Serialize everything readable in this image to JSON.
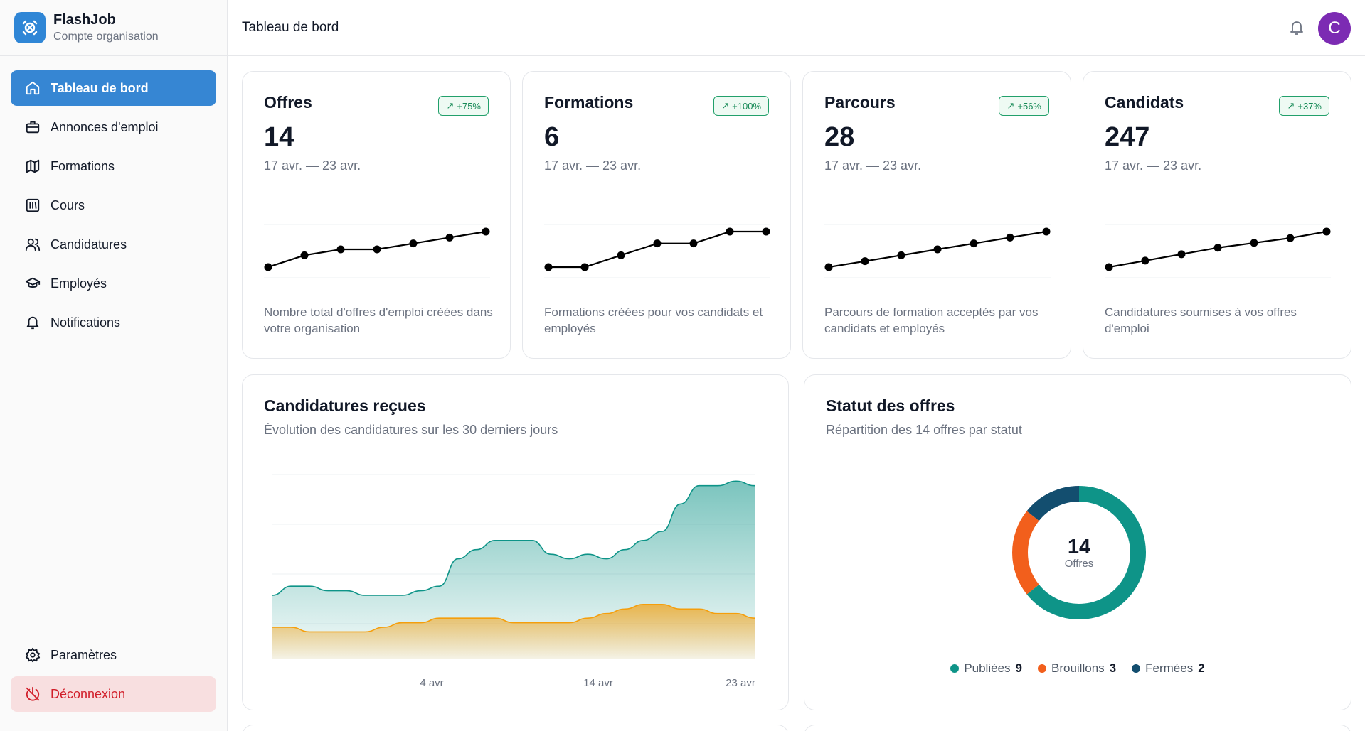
{
  "brand": {
    "name": "FlashJob",
    "subtitle": "Compte organisation"
  },
  "header": {
    "title": "Tableau de bord",
    "avatar_initial": "C"
  },
  "nav": {
    "items": [
      {
        "label": "Tableau de bord",
        "icon": "home-icon",
        "active": true
      },
      {
        "label": "Annonces d'emploi",
        "icon": "briefcase-icon"
      },
      {
        "label": "Formations",
        "icon": "map-icon"
      },
      {
        "label": "Cours",
        "icon": "library-icon"
      },
      {
        "label": "Candidatures",
        "icon": "users-icon"
      },
      {
        "label": "Employés",
        "icon": "graduation-cap-icon"
      },
      {
        "label": "Notifications",
        "icon": "bell-icon"
      }
    ],
    "settings_label": "Paramètres",
    "logout_label": "Déconnexion"
  },
  "stats": [
    {
      "title": "Offres",
      "badge": "+75%",
      "value": "14",
      "range": "17 avr. — 23 avr.",
      "description": "Nombre total d'offres d'emploi créées dans votre organisation",
      "series": [
        2,
        4,
        5,
        5,
        6,
        7,
        8
      ]
    },
    {
      "title": "Formations",
      "badge": "+100%",
      "value": "6",
      "range": "17 avr. — 23 avr.",
      "description": "Formations créées pour vos candidats et employés",
      "series": [
        3,
        3,
        4,
        5,
        5,
        6,
        6
      ]
    },
    {
      "title": "Parcours",
      "badge": "+56%",
      "value": "28",
      "range": "17 avr. — 23 avr.",
      "description": "Parcours de formation acceptés par vos candidats et employés",
      "series": [
        18,
        19,
        20,
        21,
        22,
        23,
        24
      ]
    },
    {
      "title": "Candidats",
      "badge": "+37%",
      "value": "247",
      "range": "17 avr. — 23 avr.",
      "description": "Candidatures soumises à vos offres d'emploi",
      "series": [
        180,
        184,
        188,
        192,
        195,
        198,
        202
      ]
    }
  ],
  "applications_chart": {
    "title": "Candidatures reçues",
    "subtitle": "Évolution des candidatures sur les 30 derniers jours",
    "chart_data": {
      "type": "area",
      "x_ticks": [
        "4 avr",
        "14 avr",
        "23 avr"
      ],
      "series": [
        {
          "color": "#0e9488",
          "values": [
            14,
            16,
            16,
            15,
            15,
            14,
            14,
            14,
            15,
            16,
            22,
            24,
            26,
            26,
            26,
            23,
            22,
            23,
            22,
            24,
            26,
            28,
            34,
            38,
            38,
            39,
            38
          ]
        },
        {
          "color": "#f59e0b",
          "values": [
            7,
            7,
            6,
            6,
            6,
            6,
            7,
            8,
            8,
            9,
            9,
            9,
            9,
            8,
            8,
            8,
            8,
            9,
            10,
            11,
            12,
            12,
            11,
            11,
            10,
            10,
            9
          ]
        }
      ]
    }
  },
  "status_chart": {
    "title": "Statut des offres",
    "subtitle": "Répartition des 14 offres par statut",
    "total": "14",
    "total_label": "Offres",
    "chart_data": {
      "type": "pie",
      "slices": [
        {
          "label": "Publiées",
          "value": 9,
          "color": "#0e9488"
        },
        {
          "label": "Brouillons",
          "value": 3,
          "color": "#f25f1c"
        },
        {
          "label": "Fermées",
          "value": 2,
          "color": "#134e6f"
        }
      ]
    }
  }
}
